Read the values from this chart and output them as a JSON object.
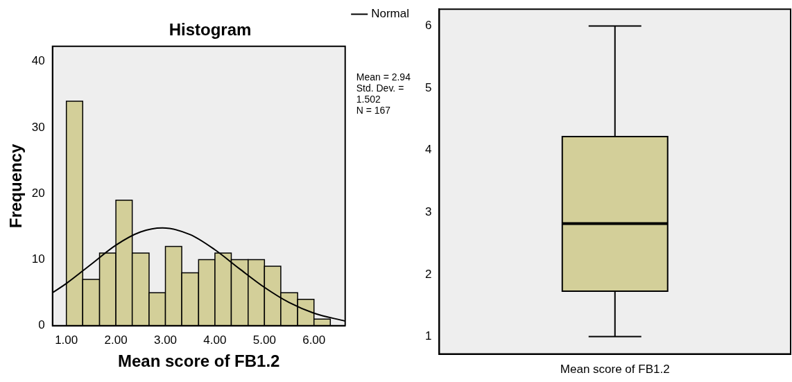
{
  "chart_data": [
    {
      "type": "histogram",
      "title": "Histogram",
      "xlabel": "Mean score of FB1.2",
      "ylabel": "Frequency",
      "bins": [
        1,
        1.33,
        1.67,
        2,
        2.33,
        2.67,
        3,
        3.33,
        3.67,
        4,
        4.33,
        4.67,
        5,
        5.33,
        5.67,
        6,
        6.33
      ],
      "values": [
        34,
        7,
        11,
        19,
        11,
        5,
        12,
        8,
        10,
        11,
        10,
        10,
        9,
        5,
        4,
        1
      ],
      "color": "#d3cf99",
      "series": [
        {
          "type": "line",
          "name": "Normal",
          "color": "#000000",
          "x": [
            0.72,
            1,
            1.5,
            2,
            2.5,
            2.94,
            3.5,
            4,
            4.5,
            5,
            5.5,
            6,
            6.63
          ],
          "values": [
            5,
            6.4,
            9.3,
            12.2,
            14.2,
            14.8,
            13.8,
            11.5,
            8.6,
            5.8,
            3.5,
            1.9,
            0.7
          ]
        }
      ],
      "xlim": [
        0.72,
        6.63
      ],
      "xticks": [
        {
          "value": 1,
          "label": "1.00"
        },
        {
          "value": 2,
          "label": "2.00"
        },
        {
          "value": 3,
          "label": "3.00"
        },
        {
          "value": 4,
          "label": "4.00"
        },
        {
          "value": 5,
          "label": "5.00"
        },
        {
          "value": 6,
          "label": "6.00"
        }
      ],
      "ylim": [
        0,
        42.3
      ],
      "yticks": [
        0,
        10,
        20,
        30,
        40
      ],
      "grid": false,
      "legend": "top right",
      "marker": "none",
      "annotations": [
        "Mean = 2.94",
        "Std. Dev. = 1.502",
        "N = 167"
      ]
    },
    {
      "type": "box",
      "categories": [
        "Mean score of FB1.2"
      ],
      "color": "#d3cf99",
      "boxes": [
        {
          "low": 1,
          "q1": 1.73,
          "median": 2.82,
          "q3": 4.22,
          "high": 6
        }
      ],
      "ylim": [
        0.72,
        6.27
      ],
      "yticks": [
        1,
        2,
        3,
        4,
        5,
        6
      ],
      "grid": false,
      "legend": false
    }
  ]
}
